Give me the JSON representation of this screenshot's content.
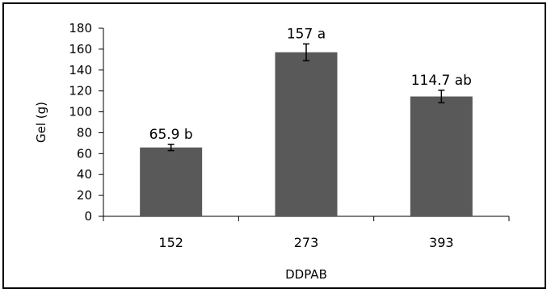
{
  "chart_data": {
    "type": "bar",
    "title": "",
    "xlabel": "DDPAB",
    "ylabel": "Gel  (g)",
    "categories": [
      "152",
      "273",
      "393"
    ],
    "values": [
      65.9,
      157,
      114.7
    ],
    "errors": [
      3,
      8,
      6
    ],
    "data_labels": [
      "65.9 b",
      "157 a",
      "114.7 ab"
    ],
    "ylim": [
      0,
      180
    ],
    "yticks": [
      0,
      20,
      40,
      60,
      80,
      100,
      120,
      140,
      160,
      180
    ],
    "grid": false,
    "legend": "none",
    "bar_color": "#595959"
  }
}
